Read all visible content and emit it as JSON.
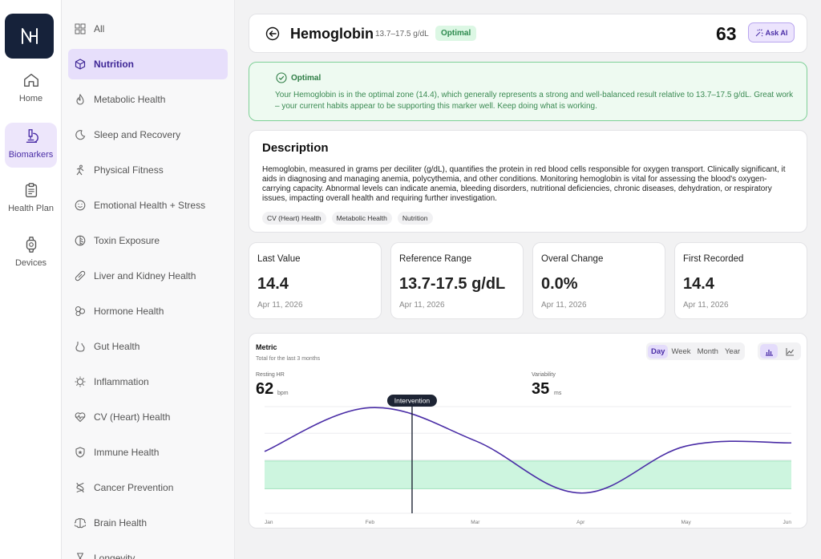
{
  "nav": {
    "items": [
      {
        "label": "Home",
        "icon": "home-icon"
      },
      {
        "label": "Biomarkers",
        "icon": "microscope-icon"
      },
      {
        "label": "Health Plan",
        "icon": "clipboard-icon"
      },
      {
        "label": "Devices",
        "icon": "watch-icon"
      }
    ],
    "active": "Biomarkers"
  },
  "categories": {
    "items": [
      {
        "label": "All",
        "icon": "grid-icon"
      },
      {
        "label": "Nutrition",
        "icon": "nutrition-icon"
      },
      {
        "label": "Metabolic Health",
        "icon": "flame-icon"
      },
      {
        "label": "Sleep and Recovery",
        "icon": "moon-icon"
      },
      {
        "label": "Physical Fitness",
        "icon": "figure-icon"
      },
      {
        "label": "Emotional Health + Stress",
        "icon": "smile-icon"
      },
      {
        "label": "Toxin Exposure",
        "icon": "toxin-icon"
      },
      {
        "label": "Liver and Kidney Health",
        "icon": "pill-icon"
      },
      {
        "label": "Hormone Health",
        "icon": "hormone-icon"
      },
      {
        "label": "Gut Health",
        "icon": "stomach-icon"
      },
      {
        "label": "Inflammation",
        "icon": "inflammation-icon"
      },
      {
        "label": "CV (Heart) Health",
        "icon": "heartbeat-icon"
      },
      {
        "label": "Immune Health",
        "icon": "shield-icon"
      },
      {
        "label": "Cancer Prevention",
        "icon": "dna-icon"
      },
      {
        "label": "Brain Health",
        "icon": "brain-icon"
      },
      {
        "label": "Longevity",
        "icon": "hourglass-icon"
      }
    ],
    "active": "Nutrition"
  },
  "header": {
    "title": "Hemoglobin",
    "range": "13.7–17.5 g/dL",
    "badge": "Optimal",
    "score": "63",
    "ask_ai": "Ask AI"
  },
  "status": {
    "title": "Optimal",
    "text": "Your Hemoglobin is in the optimal zone (14.4), which generally represents a strong and well-balanced result relative to 13.7–17.5 g/dL. Great work – your current habits appear to be supporting this marker well. Keep doing what is working."
  },
  "description": {
    "title": "Description",
    "text": "Hemoglobin, measured in grams per deciliter (g/dL), quantifies the protein in red blood cells responsible for oxygen transport. Clinically significant, it aids in diagnosing and managing anemia, polycythemia, and other conditions. Monitoring hemoglobin is vital for assessing the blood's oxygen-carrying capacity. Abnormal levels can indicate anemia, bleeding disorders, nutritional deficiencies, chronic diseases, dehydration, or respiratory issues, impacting overall health and requiring further investigation.",
    "tags": [
      "CV (Heart) Health",
      "Metabolic Health",
      "Nutrition"
    ]
  },
  "stats": [
    {
      "label": "Last Value",
      "value": "14.4",
      "date": "Apr 11, 2026"
    },
    {
      "label": "Reference Range",
      "value": "13.7-17.5 g/dL",
      "date": "Apr 11, 2026"
    },
    {
      "label": "Overal Change",
      "value": "0.0%",
      "date": "Apr 11, 2026"
    },
    {
      "label": "First Recorded",
      "value": "14.4",
      "date": "Apr 11, 2026"
    }
  ],
  "chart": {
    "title": "Metric",
    "subtitle": "Total for the last 3 months",
    "ranges": [
      "Day",
      "Week",
      "Month",
      "Year"
    ],
    "active_range": "Day",
    "view_toggle": [
      {
        "icon": "bar-chart-icon",
        "active": true
      },
      {
        "icon": "line-chart-icon",
        "active": false
      }
    ],
    "metrics": [
      {
        "label": "Resting HR",
        "value": "62",
        "unit": "bpm"
      },
      {
        "label": "Variability",
        "value": "35",
        "unit": "ms"
      }
    ],
    "marker_label": "Intervention"
  },
  "colors": {
    "accent": "#4a2da6",
    "line": "#4a2da6",
    "band": "#cdf5df",
    "optimal_green": "#2e7d45"
  },
  "chart_data": {
    "type": "line",
    "x": [
      "Jan",
      "Feb",
      "Mar",
      "Apr",
      "May",
      "Jun"
    ],
    "series": [
      {
        "values": [
          0.58,
          0.99,
          0.68,
          0.19,
          0.63,
          0.66
        ]
      }
    ],
    "band": [
      0.23,
      0.49
    ],
    "ylim": [
      0,
      1
    ],
    "marker": {
      "x": 1.4,
      "label": "Intervention"
    },
    "grid": true
  }
}
